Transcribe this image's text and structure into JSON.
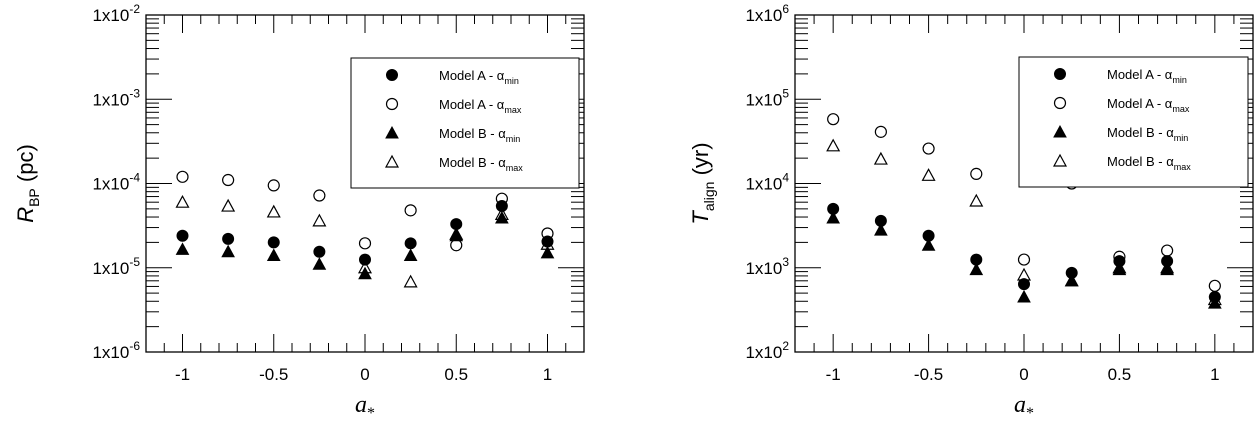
{
  "chart_data": [
    {
      "type": "scatter",
      "title": "",
      "xlabel": {
        "main": "a",
        "sub": "*"
      },
      "ylabel": {
        "main": "R",
        "sub": "BP",
        "rest": " (pc)"
      },
      "yscale": "log",
      "xlim": [
        -1.2,
        1.2
      ],
      "ylim": [
        1e-06,
        0.01
      ],
      "x_ticks": [
        "-1",
        "-0.5",
        "0",
        "0.5",
        "1"
      ],
      "y_ticks": [
        {
          "value": 1e-06,
          "base": "1x10",
          "exp": "-6"
        },
        {
          "value": 1e-05,
          "base": "1x10",
          "exp": "-5"
        },
        {
          "value": 0.0001,
          "base": "1x10",
          "exp": "-4"
        },
        {
          "value": 0.001,
          "base": "1x10",
          "exp": "-3"
        },
        {
          "value": 0.01,
          "base": "1x10",
          "exp": "-2"
        }
      ],
      "legend_position": "top-right",
      "series": [
        {
          "name": "Model A - α_min",
          "label": "Model A - α",
          "label_sub": "min",
          "marker": "filled-circle",
          "x": [
            -1,
            -0.75,
            -0.5,
            -0.25,
            0,
            0.25,
            0.5,
            0.75,
            1
          ],
          "y": [
            2.4e-05,
            2.2e-05,
            2e-05,
            1.55e-05,
            1.25e-05,
            1.95e-05,
            3.3e-05,
            5.4e-05,
            2.05e-05
          ]
        },
        {
          "name": "Model A - α_max",
          "label": "Model A - α",
          "label_sub": "max",
          "marker": "open-circle",
          "x": [
            -1,
            -0.75,
            -0.5,
            -0.25,
            0,
            0.25,
            0.5,
            0.75,
            1
          ],
          "y": [
            0.00012,
            0.00011,
            9.5e-05,
            7.2e-05,
            1.95e-05,
            4.8e-05,
            1.85e-05,
            6.6e-05,
            2.55e-05
          ]
        },
        {
          "name": "Model B - α_min",
          "label": "Model B - α",
          "label_sub": "min",
          "marker": "filled-triangle",
          "x": [
            -1,
            -0.75,
            -0.5,
            -0.25,
            0,
            0.25,
            0.5,
            0.75,
            1
          ],
          "y": [
            1.65e-05,
            1.55e-05,
            1.4e-05,
            1.1e-05,
            8.5e-06,
            1.4e-05,
            2.4e-05,
            3.9e-05,
            1.5e-05
          ]
        },
        {
          "name": "Model B - α_max",
          "label": "Model B - α",
          "label_sub": "max",
          "marker": "open-triangle",
          "x": [
            -1,
            -0.75,
            -0.5,
            -0.25,
            0,
            0.25,
            0.5,
            0.75,
            1
          ],
          "y": [
            6e-05,
            5.4e-05,
            4.6e-05,
            3.6e-05,
            1e-05,
            6.8e-06,
            2.5e-05,
            4.3e-05,
            1.9e-05
          ]
        }
      ]
    },
    {
      "type": "scatter",
      "title": "",
      "xlabel": {
        "main": "a",
        "sub": "*"
      },
      "ylabel": {
        "main": "T",
        "sub": "align",
        "rest": " (yr)"
      },
      "yscale": "log",
      "xlim": [
        -1.2,
        1.2
      ],
      "ylim": [
        100.0,
        1000000.0
      ],
      "x_ticks": [
        "-1",
        "-0.5",
        "0",
        "0.5",
        "1"
      ],
      "y_ticks": [
        {
          "value": 100.0,
          "base": "1x10",
          "exp": "2"
        },
        {
          "value": 1000.0,
          "base": "1x10",
          "exp": "3"
        },
        {
          "value": 10000.0,
          "base": "1x10",
          "exp": "4"
        },
        {
          "value": 100000.0,
          "base": "1x10",
          "exp": "5"
        },
        {
          "value": 1000000.0,
          "base": "1x10",
          "exp": "6"
        }
      ],
      "legend_position": "top-right",
      "series": [
        {
          "name": "Model A - α_min",
          "label": "Model A - α",
          "label_sub": "min",
          "marker": "filled-circle",
          "x": [
            -1,
            -0.75,
            -0.5,
            -0.25,
            0,
            0.25,
            0.5,
            0.75,
            1
          ],
          "y": [
            5000,
            3600,
            2400,
            1250,
            640,
            870,
            1200,
            1200,
            450
          ]
        },
        {
          "name": "Model A - α_max",
          "label": "Model A - α",
          "label_sub": "max",
          "marker": "open-circle",
          "x": [
            -1,
            -0.75,
            -0.5,
            -0.25,
            0,
            0.25,
            0.5,
            0.75,
            1
          ],
          "y": [
            58000,
            41000,
            26000,
            13000,
            1250,
            10000,
            1350,
            1600,
            610
          ]
        },
        {
          "name": "Model B - α_min",
          "label": "Model B - α",
          "label_sub": "min",
          "marker": "filled-triangle",
          "x": [
            -1,
            -0.75,
            -0.5,
            -0.25,
            0,
            0.25,
            0.5,
            0.75,
            1
          ],
          "y": [
            3900,
            2800,
            1850,
            950,
            450,
            700,
            950,
            950,
            380
          ]
        },
        {
          "name": "Model B - α_max",
          "label": "Model B - α",
          "label_sub": "max",
          "marker": "open-triangle",
          "x": [
            -1,
            -0.75,
            -0.5,
            -0.25,
            0,
            0.25,
            0.5,
            0.75,
            1
          ],
          "y": [
            28000,
            19500,
            12500,
            6200,
            820,
            700,
            1000,
            1000,
            420
          ]
        }
      ]
    }
  ]
}
